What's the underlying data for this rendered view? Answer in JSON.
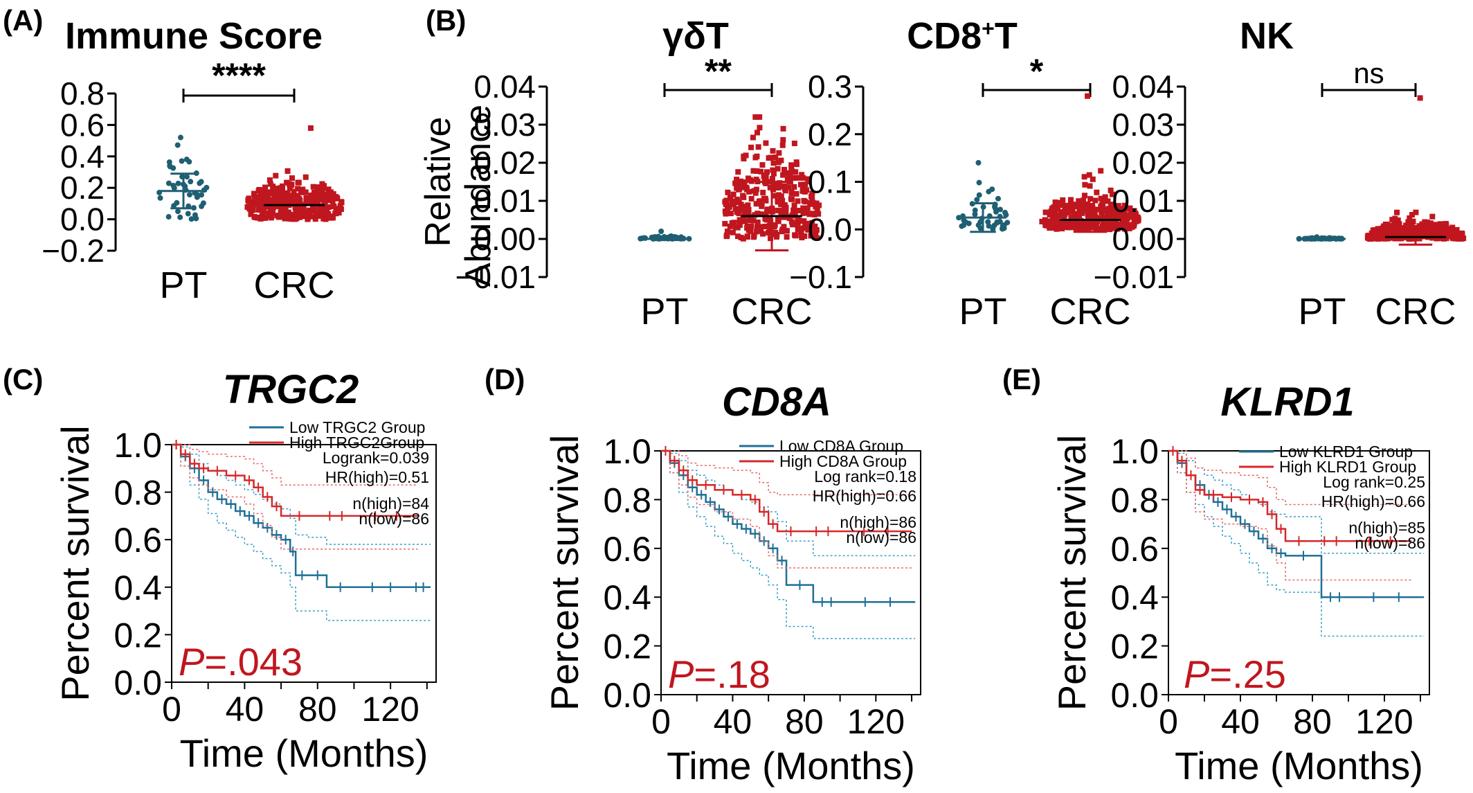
{
  "panel_labels": [
    "(A)",
    "(B)",
    "(C)",
    "(D)",
    "(E)"
  ],
  "chart_data": [
    {
      "panel": "(A)",
      "type": "scatter",
      "title": "Immune Score",
      "ylabel": "",
      "categories": [
        "PT",
        "CRC"
      ],
      "yticks": [
        "0.8",
        "0.6",
        "0.4",
        "0.2",
        "0.0",
        "−0.2"
      ],
      "ylim": [
        -0.2,
        0.8
      ],
      "significance": "****",
      "groups": [
        {
          "name": "PT",
          "color": "#1f5f73",
          "n": 45,
          "mean": 0.18,
          "sd": 0.11,
          "min": 0.0,
          "max": 0.52
        },
        {
          "name": "CRC",
          "color": "#c0161f",
          "n": 330,
          "mean": 0.09,
          "sd": 0.07,
          "min": 0.0,
          "max": 0.58
        }
      ]
    },
    {
      "panel": "(B)",
      "type": "scatter",
      "title": "γδT",
      "ylabel": "Relative Abundance",
      "categories": [
        "PT",
        "CRC"
      ],
      "yticks": [
        "0.04",
        "0.03",
        "0.02",
        "0.01",
        "0.00",
        "−0.01"
      ],
      "ylim": [
        -0.01,
        0.04
      ],
      "significance": "**",
      "groups": [
        {
          "name": "PT",
          "color": "#1f5f73",
          "n": 45,
          "mean": 0.0,
          "sd": 0.0003,
          "min": 0.0,
          "max": 0.002
        },
        {
          "name": "CRC",
          "color": "#c0161f",
          "n": 330,
          "mean": 0.006,
          "sd": 0.009,
          "min": 0.0,
          "max": 0.032
        }
      ]
    },
    {
      "panel": "(B)",
      "type": "scatter",
      "title": "CD8",
      "title_sup": "+",
      "title_suffix": "T",
      "ylabel": "",
      "categories": [
        "PT",
        "CRC"
      ],
      "yticks": [
        "0.3",
        "0.2",
        "0.1",
        "0.0",
        "−0.1"
      ],
      "ylim": [
        -0.1,
        0.3
      ],
      "significance": "*",
      "groups": [
        {
          "name": "PT",
          "color": "#1f5f73",
          "n": 45,
          "mean": 0.025,
          "sd": 0.03,
          "min": 0.0,
          "max": 0.14
        },
        {
          "name": "CRC",
          "color": "#c0161f",
          "n": 330,
          "mean": 0.02,
          "sd": 0.025,
          "min": 0.0,
          "max": 0.28
        }
      ]
    },
    {
      "panel": "(B)",
      "type": "scatter",
      "title": "NK",
      "ylabel": "",
      "categories": [
        "PT",
        "CRC"
      ],
      "yticks": [
        "0.04",
        "0.03",
        "0.02",
        "0.01",
        "0.00",
        "−0.01"
      ],
      "ylim": [
        -0.01,
        0.04
      ],
      "significance": "ns",
      "groups": [
        {
          "name": "PT",
          "color": "#1f5f73",
          "n": 45,
          "mean": 0.0,
          "sd": 0.0001,
          "min": 0.0,
          "max": 0.0005
        },
        {
          "name": "CRC",
          "color": "#c0161f",
          "n": 330,
          "mean": 0.0005,
          "sd": 0.002,
          "min": 0.0,
          "max": 0.037
        }
      ]
    },
    {
      "panel": "(C)",
      "type": "line",
      "title": "TRGC2",
      "xlabel": "Time (Months)",
      "ylabel": "Percent survival",
      "xticks": [
        0,
        40,
        80,
        120
      ],
      "yticks": [
        "1.0",
        "0.8",
        "0.6",
        "0.4",
        "0.2",
        "0.0"
      ],
      "xlim": [
        0,
        145
      ],
      "ylim": [
        0,
        1.0
      ],
      "legend": [
        "Low TRGC2 Group",
        "High  TRGC2Group"
      ],
      "stats": [
        "Logrank=0.039",
        "HR(high)=0.51",
        "n(high)=84",
        "n(low)=86"
      ],
      "p_prefix": "P",
      "p_value": "=.043",
      "series": [
        {
          "name": "Low TRGC2 Group",
          "color": "#1f6f96",
          "x": [
            0,
            5,
            10,
            15,
            20,
            25,
            30,
            35,
            40,
            45,
            50,
            55,
            60,
            65,
            68,
            75,
            85,
            100,
            130,
            142
          ],
          "y": [
            1.0,
            0.95,
            0.9,
            0.85,
            0.8,
            0.77,
            0.75,
            0.72,
            0.7,
            0.67,
            0.65,
            0.62,
            0.6,
            0.55,
            0.45,
            0.45,
            0.4,
            0.4,
            0.4,
            0.4
          ],
          "upper": [
            1.0,
            0.99,
            0.96,
            0.92,
            0.89,
            0.87,
            0.85,
            0.83,
            0.81,
            0.79,
            0.77,
            0.75,
            0.73,
            0.69,
            0.62,
            0.61,
            0.58,
            0.58,
            0.58,
            0.58
          ],
          "lower": [
            1.0,
            0.91,
            0.83,
            0.77,
            0.71,
            0.67,
            0.64,
            0.61,
            0.58,
            0.55,
            0.52,
            0.49,
            0.46,
            0.4,
            0.3,
            0.3,
            0.26,
            0.26,
            0.26,
            0.26
          ]
        },
        {
          "name": "High  TRGC2Group",
          "color": "#d62728",
          "x": [
            0,
            5,
            10,
            15,
            20,
            30,
            40,
            45,
            50,
            55,
            60,
            80,
            100,
            135
          ],
          "y": [
            1.0,
            0.96,
            0.92,
            0.9,
            0.89,
            0.87,
            0.85,
            0.82,
            0.78,
            0.74,
            0.7,
            0.7,
            0.7,
            0.7
          ],
          "upper": [
            1.0,
            1.0,
            0.98,
            0.97,
            0.96,
            0.95,
            0.94,
            0.92,
            0.89,
            0.86,
            0.83,
            0.83,
            0.83,
            0.83
          ],
          "lower": [
            1.0,
            0.91,
            0.86,
            0.83,
            0.81,
            0.78,
            0.75,
            0.71,
            0.66,
            0.61,
            0.56,
            0.56,
            0.56,
            0.56
          ]
        }
      ]
    },
    {
      "panel": "(D)",
      "type": "line",
      "title": "CD8A",
      "xlabel": "Time (Months)",
      "ylabel": "Percent survival",
      "xticks": [
        0,
        40,
        80,
        120
      ],
      "yticks": [
        "1.0",
        "0.8",
        "0.6",
        "0.4",
        "0.2",
        "0.0"
      ],
      "xlim": [
        0,
        145
      ],
      "ylim": [
        0,
        1.0
      ],
      "legend": [
        "Low CD8A Group",
        "High  CD8A Group"
      ],
      "stats": [
        "Log rank=0.18",
        "HR(high)=0.66",
        "n(high)=86",
        "n(low)=86"
      ],
      "p_prefix": "P",
      "p_value": "=.18",
      "series": [
        {
          "name": "Low CD8A Group",
          "color": "#1f6f96",
          "x": [
            0,
            5,
            10,
            15,
            20,
            25,
            30,
            35,
            40,
            45,
            50,
            55,
            60,
            65,
            70,
            85,
            100,
            142
          ],
          "y": [
            1.0,
            0.95,
            0.9,
            0.85,
            0.82,
            0.79,
            0.76,
            0.73,
            0.7,
            0.68,
            0.66,
            0.63,
            0.6,
            0.55,
            0.45,
            0.38,
            0.38,
            0.38
          ],
          "upper": [
            1.0,
            0.99,
            0.96,
            0.92,
            0.9,
            0.88,
            0.86,
            0.84,
            0.82,
            0.8,
            0.79,
            0.77,
            0.75,
            0.71,
            0.63,
            0.57,
            0.57,
            0.57
          ],
          "lower": [
            1.0,
            0.91,
            0.83,
            0.77,
            0.73,
            0.69,
            0.65,
            0.62,
            0.58,
            0.55,
            0.52,
            0.49,
            0.45,
            0.39,
            0.28,
            0.23,
            0.23,
            0.23
          ]
        },
        {
          "name": "High  CD8A Group",
          "color": "#d62728",
          "x": [
            0,
            5,
            10,
            15,
            20,
            30,
            40,
            50,
            55,
            60,
            65,
            80,
            100,
            140
          ],
          "y": [
            1.0,
            0.96,
            0.92,
            0.88,
            0.86,
            0.84,
            0.82,
            0.8,
            0.75,
            0.7,
            0.67,
            0.67,
            0.67,
            0.67
          ],
          "upper": [
            1.0,
            1.0,
            0.98,
            0.95,
            0.94,
            0.93,
            0.92,
            0.91,
            0.87,
            0.83,
            0.82,
            0.82,
            0.82,
            0.82
          ],
          "lower": [
            1.0,
            0.91,
            0.86,
            0.81,
            0.78,
            0.75,
            0.72,
            0.69,
            0.63,
            0.57,
            0.52,
            0.52,
            0.52,
            0.52
          ]
        }
      ]
    },
    {
      "panel": "(E)",
      "type": "line",
      "title": "KLRD1",
      "xlabel": "Time (Months)",
      "ylabel": "Percent survival",
      "xticks": [
        0,
        40,
        80,
        120
      ],
      "yticks": [
        "1.0",
        "0.8",
        "0.6",
        "0.4",
        "0.2",
        "0.0"
      ],
      "xlim": [
        0,
        145
      ],
      "ylim": [
        0,
        1.0
      ],
      "legend": [
        "Low KLRD1 Group",
        "High  KLRD1 Group"
      ],
      "stats": [
        "Log rank=0.25",
        "HR(high)=0.66",
        "n(high)=85",
        "n(low)=86"
      ],
      "p_prefix": "P",
      "p_value": "=.25",
      "series": [
        {
          "name": "Low KLRD1 Group",
          "color": "#1f6f96",
          "x": [
            0,
            5,
            10,
            15,
            20,
            25,
            30,
            35,
            40,
            45,
            50,
            55,
            60,
            65,
            85,
            100,
            142
          ],
          "y": [
            1.0,
            0.95,
            0.9,
            0.86,
            0.82,
            0.79,
            0.76,
            0.73,
            0.7,
            0.67,
            0.64,
            0.6,
            0.58,
            0.57,
            0.4,
            0.4,
            0.4
          ],
          "upper": [
            1.0,
            0.99,
            0.96,
            0.93,
            0.9,
            0.88,
            0.86,
            0.84,
            0.82,
            0.8,
            0.78,
            0.75,
            0.74,
            0.73,
            0.58,
            0.58,
            0.58
          ],
          "lower": [
            1.0,
            0.91,
            0.83,
            0.78,
            0.73,
            0.69,
            0.65,
            0.62,
            0.58,
            0.54,
            0.5,
            0.45,
            0.43,
            0.42,
            0.24,
            0.24,
            0.24
          ]
        },
        {
          "name": "High  KLRD1 Group",
          "color": "#d62728",
          "x": [
            0,
            5,
            10,
            15,
            20,
            30,
            40,
            50,
            55,
            60,
            65,
            80,
            100,
            135
          ],
          "y": [
            1.0,
            0.96,
            0.9,
            0.84,
            0.82,
            0.81,
            0.8,
            0.79,
            0.74,
            0.68,
            0.63,
            0.63,
            0.63,
            0.63
          ],
          "upper": [
            1.0,
            1.0,
            0.97,
            0.93,
            0.92,
            0.91,
            0.9,
            0.89,
            0.85,
            0.8,
            0.78,
            0.78,
            0.78,
            0.78
          ],
          "lower": [
            1.0,
            0.91,
            0.83,
            0.75,
            0.72,
            0.7,
            0.69,
            0.68,
            0.61,
            0.54,
            0.47,
            0.47,
            0.47,
            0.47
          ]
        }
      ]
    }
  ]
}
